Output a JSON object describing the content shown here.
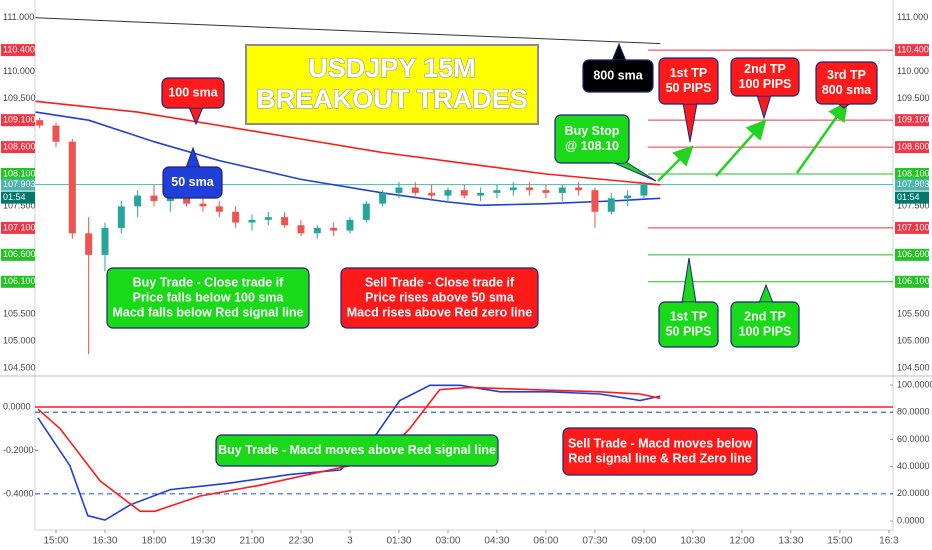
{
  "chart_data": [
    {
      "type": "candlestick",
      "xlim": [
        -2.57,
        102.5
      ],
      "ylim": [
        104.37,
        111.33
      ],
      "yticks": [
        {
          "value": 104.5,
          "label": "104.500"
        },
        {
          "value": 105.0,
          "label": "105.000"
        },
        {
          "value": 105.5,
          "label": "105.500"
        },
        {
          "value": 107.5,
          "label": "107.500"
        },
        {
          "value": 109.5,
          "label": "109.500"
        },
        {
          "value": 110.0,
          "label": "110.000"
        },
        {
          "value": 111.0,
          "label": "111.000"
        }
      ],
      "up_color": "#26a69a",
      "down_color": "#ef5350",
      "x": [
        -2,
        0,
        2,
        4,
        6,
        8,
        10,
        12,
        14,
        16,
        18,
        20,
        22,
        24,
        26,
        28,
        30,
        32,
        34,
        36,
        38,
        40,
        42,
        44,
        46,
        48,
        50,
        52,
        54,
        56,
        58,
        60,
        62,
        64,
        66,
        68,
        70,
        72
      ],
      "open": [
        109.1,
        109.0,
        108.7,
        107.0,
        106.6,
        107.1,
        107.5,
        107.7,
        107.6,
        107.7,
        107.55,
        107.5,
        107.4,
        107.2,
        107.25,
        107.3,
        107.15,
        107.0,
        107.1,
        107.05,
        107.25,
        107.55,
        107.75,
        107.85,
        107.75,
        107.7,
        107.8,
        107.7,
        107.75,
        107.8,
        107.85,
        107.8,
        107.75,
        107.85,
        107.8,
        107.4,
        107.65,
        107.7
      ],
      "high": [
        109.15,
        109.05,
        108.75,
        107.3,
        107.2,
        107.6,
        107.8,
        107.9,
        107.8,
        107.85,
        107.7,
        107.6,
        107.5,
        107.35,
        107.4,
        107.4,
        107.25,
        107.15,
        107.2,
        107.3,
        107.6,
        107.8,
        107.95,
        107.95,
        107.9,
        107.85,
        107.9,
        107.85,
        107.9,
        107.95,
        107.95,
        107.9,
        107.9,
        107.95,
        107.85,
        107.75,
        107.8,
        107.95
      ],
      "low": [
        108.95,
        108.6,
        106.9,
        104.75,
        106.3,
        107.0,
        107.3,
        107.5,
        107.4,
        107.5,
        107.4,
        107.3,
        107.1,
        107.05,
        107.15,
        107.1,
        106.95,
        106.9,
        106.95,
        107.0,
        107.2,
        107.5,
        107.65,
        107.7,
        107.6,
        107.6,
        107.65,
        107.6,
        107.65,
        107.7,
        107.7,
        107.65,
        107.6,
        107.7,
        107.1,
        107.35,
        107.5,
        107.65
      ],
      "close": [
        109.0,
        108.7,
        107.0,
        106.6,
        107.1,
        107.5,
        107.7,
        107.6,
        107.7,
        107.55,
        107.5,
        107.4,
        107.2,
        107.25,
        107.3,
        107.15,
        107.0,
        107.1,
        107.05,
        107.25,
        107.55,
        107.75,
        107.85,
        107.75,
        107.7,
        107.8,
        107.7,
        107.75,
        107.8,
        107.85,
        107.8,
        107.75,
        107.85,
        107.8,
        107.4,
        107.65,
        107.7,
        107.9
      ],
      "lines": [
        {
          "color": "#ff1a1a",
          "x": [
            -2.5,
            10,
            20,
            30,
            40,
            50,
            60,
            74
          ],
          "values": [
            109.45,
            109.25,
            109.0,
            108.75,
            108.5,
            108.3,
            108.1,
            107.9
          ]
        },
        {
          "color": "#1f3fd8",
          "x": [
            -2.5,
            4,
            12,
            20,
            30,
            40,
            48,
            52,
            60,
            68,
            74
          ],
          "values": [
            109.25,
            109.1,
            108.7,
            108.35,
            108.0,
            107.75,
            107.58,
            107.52,
            107.55,
            107.6,
            107.65
          ]
        },
        {
          "color": "#333333",
          "x": [
            -2.5,
            74
          ],
          "values": [
            111.0,
            110.52
          ]
        }
      ],
      "levels": [
        {
          "value": 110.4,
          "label": "110.400",
          "color": "#f23645"
        },
        {
          "value": 109.1,
          "label": "109.100",
          "color": "#f23645"
        },
        {
          "value": 108.6,
          "label": "108.600",
          "color": "#f23645"
        },
        {
          "value": 108.1,
          "label": "108.100",
          "color": "#22c322"
        },
        {
          "value": 107.1,
          "label": "107.100",
          "color": "#f23645"
        },
        {
          "value": 106.6,
          "label": "106.600",
          "color": "#22c322"
        },
        {
          "value": 106.1,
          "label": "106.100",
          "color": "#22c322"
        }
      ],
      "current": {
        "value": 107.903,
        "label": "107.903",
        "countdown": "01:54",
        "color": "#4db6ac"
      }
    },
    {
      "type": "line",
      "xlim": [
        -2.57,
        102.5
      ],
      "ylim": [
        -0.566,
        0.138
      ],
      "y2lim": [
        -6.6,
        105.9
      ],
      "xticks": [
        {
          "value": 0,
          "label": "15:00"
        },
        {
          "value": 6,
          "label": "16:30"
        },
        {
          "value": 12,
          "label": "18:00"
        },
        {
          "value": 18,
          "label": "19:30"
        },
        {
          "value": 24,
          "label": "21:00"
        },
        {
          "value": 30,
          "label": "22:30"
        },
        {
          "value": 36,
          "label": "3"
        },
        {
          "value": 42,
          "label": "01:30"
        },
        {
          "value": 48,
          "label": "03:00"
        },
        {
          "value": 54,
          "label": "04:30"
        },
        {
          "value": 60,
          "label": "06:00"
        },
        {
          "value": 66,
          "label": "07:30"
        },
        {
          "value": 72,
          "label": "09:00"
        },
        {
          "value": 78,
          "label": "10:30"
        },
        {
          "value": 84,
          "label": "12:00"
        },
        {
          "value": 90,
          "label": "13:30"
        },
        {
          "value": 96,
          "label": "15:00"
        },
        {
          "value": 102,
          "label": "16:3"
        }
      ],
      "yticks": [
        {
          "value": 0,
          "label": "0.0000"
        },
        {
          "value": -0.2,
          "label": "-0.2000"
        },
        {
          "value": -0.4,
          "label": "-0.4000"
        }
      ],
      "y2ticks": [
        {
          "value": 0,
          "label": "0.0000"
        },
        {
          "value": 20,
          "label": "20.0000"
        },
        {
          "value": 40,
          "label": "40.0000"
        },
        {
          "value": 60,
          "label": "60.0000"
        },
        {
          "value": 80,
          "label": "80.0000"
        },
        {
          "value": 100,
          "label": "100.0000"
        }
      ],
      "series": [
        {
          "color": "#1f3fd8",
          "x": [
            -2.2,
            1.7,
            3.9,
            6,
            9.1,
            14,
            21.3,
            28.7,
            34.8,
            38.4,
            42.1,
            45.8,
            49.5,
            54.4,
            60.5,
            66.6,
            71.5,
            74
          ],
          "values": [
            -0.05,
            -0.27,
            -0.5,
            -0.52,
            -0.45,
            -0.38,
            -0.35,
            -0.31,
            -0.29,
            -0.17,
            0.03,
            0.1,
            0.1,
            0.07,
            0.07,
            0.06,
            0.03,
            0.05
          ]
        },
        {
          "color": "#ff1a1a",
          "x": [
            -2.2,
            0.5,
            5.4,
            10.3,
            12.1,
            17.6,
            25,
            33.5,
            39.7,
            43.3,
            47,
            50.7,
            58,
            66.6,
            71.5,
            74
          ],
          "values": [
            -0.01,
            -0.1,
            -0.34,
            -0.48,
            -0.48,
            -0.41,
            -0.36,
            -0.29,
            -0.24,
            -0.1,
            0.08,
            0.09,
            0.08,
            0.07,
            0.06,
            0.04
          ]
        }
      ],
      "hlines": [
        {
          "value": 0,
          "color": "#ff1a1a"
        },
        {
          "value": 80,
          "axis": "y2",
          "color": "#2962ff",
          "dashed": true
        },
        {
          "value": 20,
          "axis": "y2",
          "color": "#2962ff",
          "dashed": true
        }
      ]
    }
  ],
  "annotations": {
    "title": [
      "USDJPY 15M",
      "BREAKOUT TRADES"
    ],
    "callouts": [
      {
        "lines": [
          "100 sma"
        ],
        "color": "#ff1a1a"
      },
      {
        "lines": [
          "50 sma"
        ],
        "color": "#1f3fd8"
      },
      {
        "lines": [
          "800 sma"
        ],
        "color": "#000000"
      },
      {
        "lines": [
          "1st TP",
          "50 PIPS"
        ],
        "color": "#ff1a1a"
      },
      {
        "lines": [
          "2nd TP",
          "100 PIPS"
        ],
        "color": "#ff1a1a"
      },
      {
        "lines": [
          "3rd TP",
          "800 sma"
        ],
        "color": "#ff1a1a"
      },
      {
        "lines": [
          "Buy Stop",
          "@ 108.10"
        ],
        "color": "#19d919"
      },
      {
        "lines": [
          "Buy Trade - Close trade if",
          "Price falls below 100 sma",
          "Macd falls below Red signal line"
        ],
        "color": "#19d919"
      },
      {
        "lines": [
          "Sell Trade - Close trade if",
          "Price rises above 50 sma",
          "Macd rises above Red zero line"
        ],
        "color": "#ff1a1a"
      },
      {
        "lines": [
          "1st TP",
          "50 PIPS"
        ],
        "color": "#19d919"
      },
      {
        "lines": [
          "2nd TP",
          "100 PIPS"
        ],
        "color": "#19d919"
      },
      {
        "lines": [
          "Buy Trade - Macd moves above Red signal line"
        ],
        "color": "#19d919"
      },
      {
        "lines": [
          "Sell Trade - Macd moves below",
          "Red signal line & Red Zero line"
        ],
        "color": "#ff1a1a"
      }
    ]
  }
}
